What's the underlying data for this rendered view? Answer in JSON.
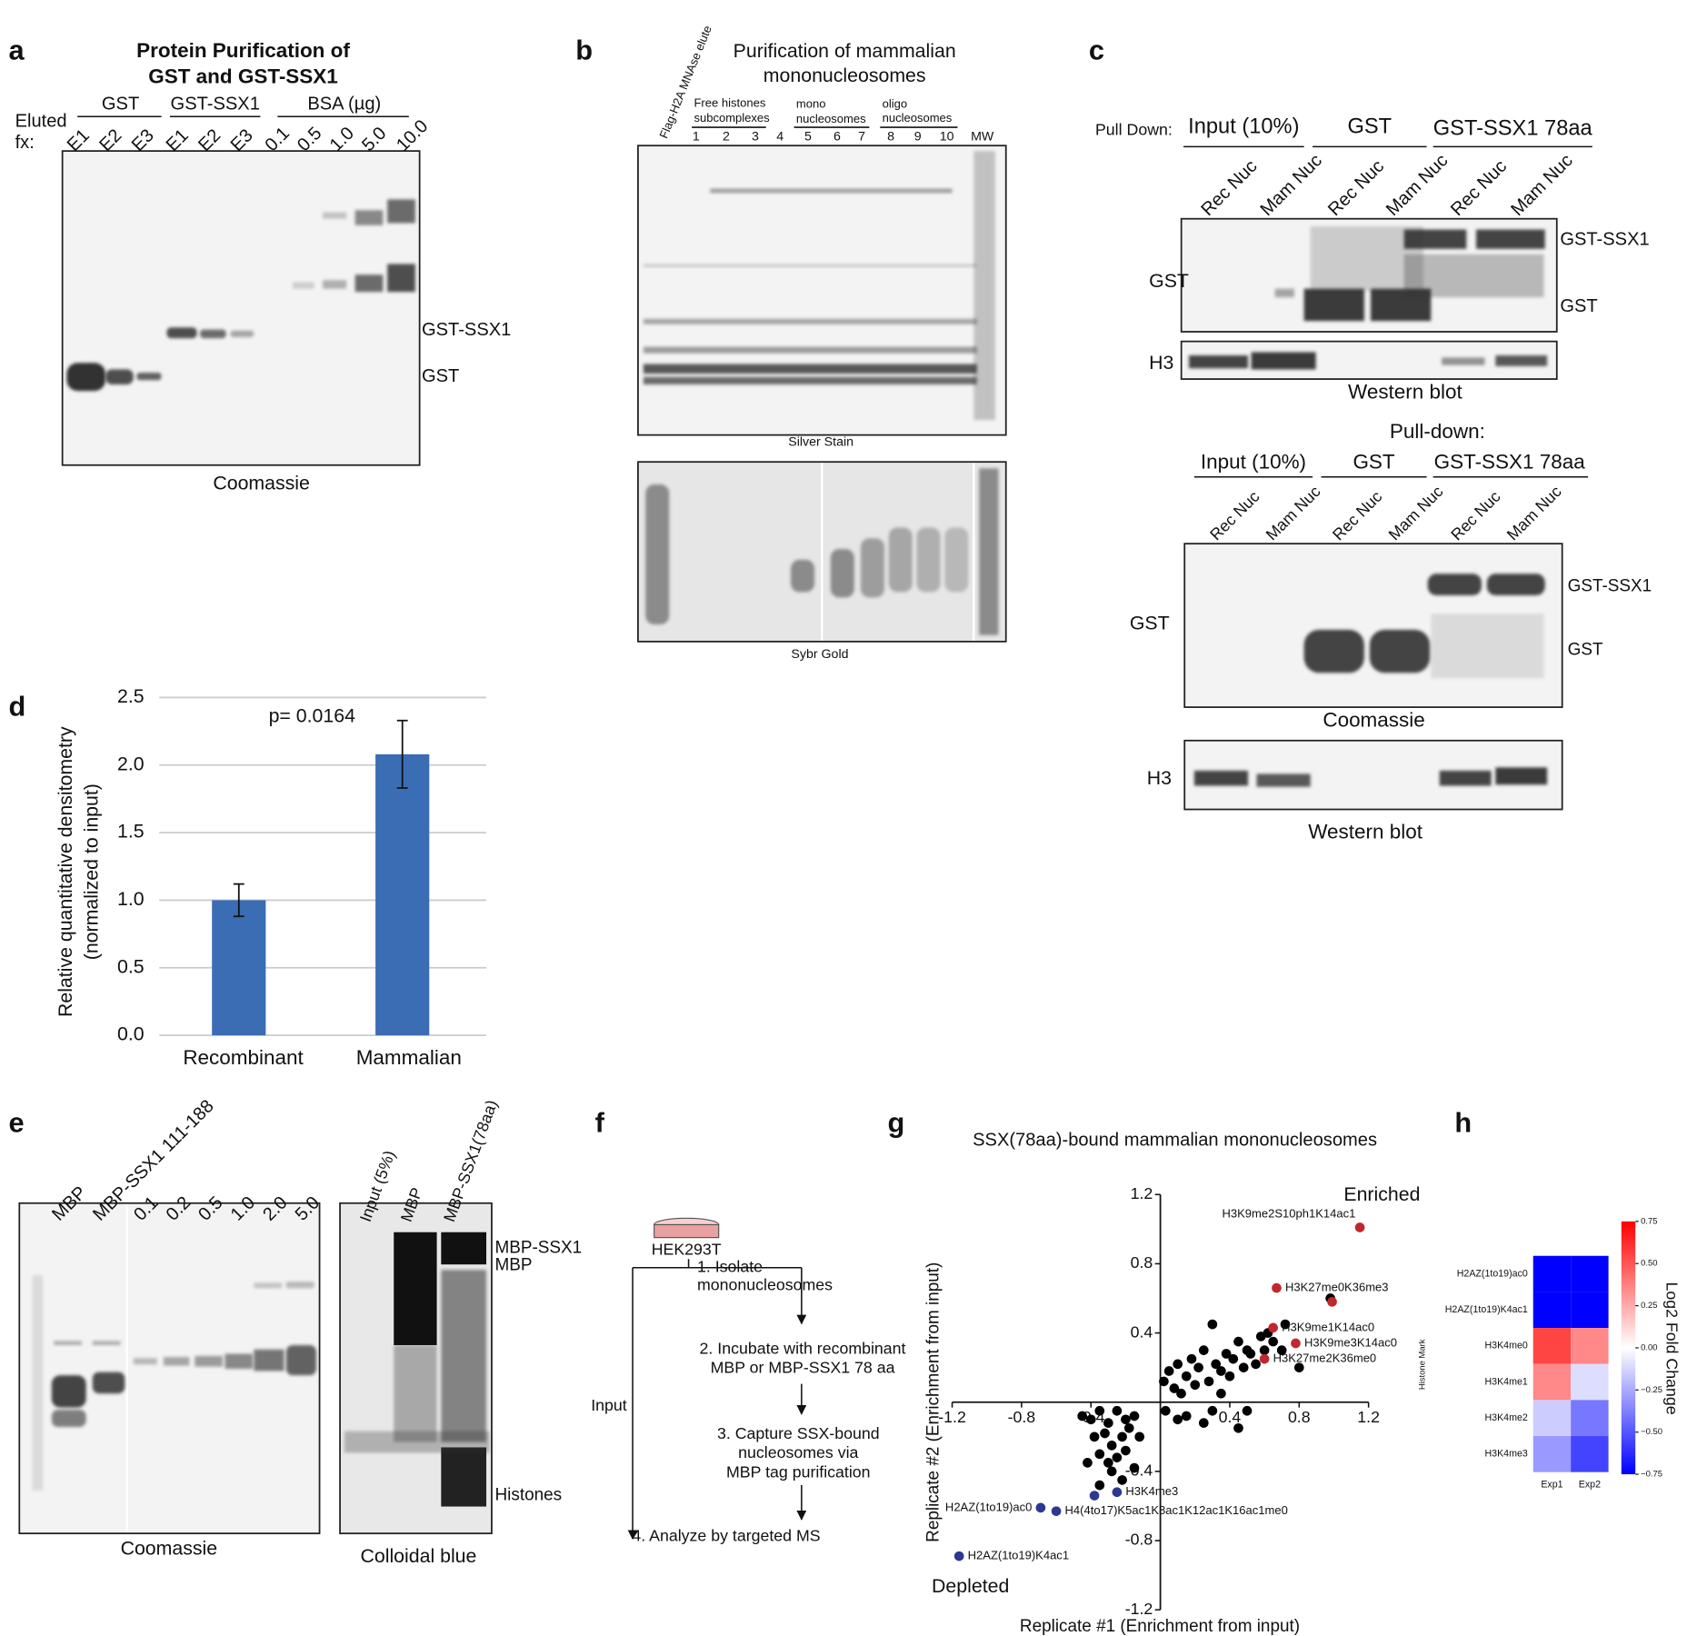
{
  "panels": {
    "a": {
      "letter": "a",
      "title": [
        "Protein Purification of",
        "GST and GST-SSX1"
      ],
      "eluted": [
        "Eluted",
        "fx:"
      ],
      "groups": [
        "GST",
        "GST-SSX1",
        "BSA (µg)"
      ],
      "lanes": [
        "E1",
        "E2",
        "E3",
        "E1",
        "E2",
        "E3",
        "0.1",
        "0.5",
        "1.0",
        "5.0",
        "10.0"
      ],
      "band_labels": [
        "GST-SSX1",
        "GST"
      ],
      "caption": "Coomassie"
    },
    "b": {
      "letter": "b",
      "title": [
        "Purification of mammalian",
        "mononucleosomes"
      ],
      "first_lane": "Flag-H2A MNAse elute",
      "groups": [
        [
          "Free histones",
          "subcomplexes"
        ],
        [
          "mono",
          "nucleosomes"
        ],
        [
          "oligo",
          "nucleosomes"
        ]
      ],
      "lanes": [
        "1",
        "2",
        "3",
        "4",
        "5",
        "6",
        "7",
        "8",
        "9",
        "10",
        "MW"
      ],
      "captions": [
        "Silver Stain",
        "Sybr Gold"
      ]
    },
    "c": {
      "letter": "c",
      "pull_down": "Pull Down:",
      "groups": [
        "Input (10%)",
        "GST",
        "GST-SSX1 78aa"
      ],
      "lanes": [
        "Rec Nuc",
        "Mam Nuc",
        "Rec Nuc",
        "Mam Nuc",
        "Rec Nuc",
        "Mam Nuc"
      ],
      "blots": [
        "GST",
        "H3"
      ],
      "band_labels": [
        "GST-SSX1",
        "GST"
      ],
      "caption": "Western blot",
      "lower": {
        "pull_down": "Pull-down:",
        "groups": [
          "Input (10%)",
          "GST",
          "GST-SSX1 78aa"
        ],
        "lanes": [
          "Rec Nuc",
          "Mam Nuc",
          "Rec Nuc",
          "Mam Nuc",
          "Rec Nuc",
          "Mam Nuc"
        ],
        "blots": [
          "GST",
          "H3"
        ],
        "band_labels": [
          "GST-SSX1",
          "GST"
        ],
        "captions": [
          "Coomassie",
          "Western blot"
        ]
      }
    },
    "d": {
      "letter": "d"
    },
    "e": {
      "letter": "e",
      "lanes": [
        "MBP",
        "MBP-SSX1 111-188",
        "0.1",
        "0.2",
        "0.5",
        "1.0",
        "2.0",
        "5.0"
      ],
      "caption": "Coomassie",
      "lanes2": [
        "Input (5%)",
        "MBP",
        "MBP-SSX1(78aa)"
      ],
      "band_labels": [
        "MBP-SSX1",
        "MBP",
        "Histones"
      ],
      "caption2": "Colloidal blue"
    },
    "f": {
      "letter": "f",
      "cells": "HEK293T",
      "steps": [
        [
          "1. Isolate",
          "mononucleosomes"
        ],
        [
          "2. Incubate with recombinant",
          "MBP or MBP-SSX1 78 aa"
        ],
        [
          "3. Capture SSX-bound",
          "nucleosomes via",
          "MBP tag purification"
        ],
        [
          "4. Analyze by targeted MS"
        ]
      ],
      "input": "Input"
    },
    "g": {
      "letter": "g"
    },
    "h": {
      "letter": "h"
    }
  },
  "chart_data": [
    {
      "type": "bar",
      "categories": [
        "Recombinant",
        "Mammalian"
      ],
      "values": [
        1.0,
        2.08
      ],
      "errors": [
        0.12,
        0.25
      ],
      "color": "#3b6db5",
      "ylim": [
        0,
        2.5
      ],
      "yticks": [
        {
          "value": 0,
          "label": "0.0"
        },
        0.5,
        {
          "value": 1,
          "label": "1.0"
        },
        1.5,
        {
          "value": 2,
          "label": "2.0"
        },
        2.5
      ],
      "y_label": [
        "Relative quantitative densitometry",
        "(normalized to input)"
      ],
      "annotation": "p= 0.0164",
      "grid": true
    },
    {
      "type": "scatter",
      "title": "SSX(78aa)-bound mammalian mononucleosomes",
      "x_label": "Replicate #1 (Enrichment from input)",
      "y_label": "Replicate #2 (Enrichment from input)",
      "xlim": [
        -1.2,
        1.2
      ],
      "ylim": [
        -1.2,
        1.2
      ],
      "xticks": [
        -1.2,
        -0.8,
        -0.4,
        0.4,
        0.8,
        1.2
      ],
      "yticks": [
        -1.2,
        -0.8,
        -0.4,
        0.4,
        0.8,
        1.2
      ],
      "series": [
        {
          "color": "#000000",
          "x": [
            0.02,
            0.05,
            0.08,
            0.1,
            0.12,
            0.15,
            0.18,
            0.2,
            0.22,
            0.25,
            0.28,
            0.3,
            0.32,
            0.35,
            0.38,
            0.4,
            0.42,
            0.45,
            0.48,
            0.5,
            0.52,
            0.55,
            0.58,
            0.6,
            0.62,
            0.65,
            0.7,
            0.72,
            0.8,
            0.98,
            0.03,
            0.15,
            0.25,
            0.3,
            0.45,
            0.5,
            0.1,
            0.35,
            -0.45,
            -0.4,
            -0.35,
            -0.3,
            -0.25,
            -0.2,
            -0.15,
            -0.38,
            -0.32,
            -0.28,
            -0.22,
            -0.18,
            -0.12,
            -0.35,
            -0.3,
            -0.25,
            -0.2,
            -0.42,
            -0.28,
            -0.22,
            -0.35,
            -0.15
          ],
          "y": [
            0.12,
            0.18,
            0.08,
            0.22,
            0.05,
            0.15,
            0.25,
            0.1,
            0.2,
            0.3,
            0.12,
            0.45,
            0.22,
            0.18,
            0.28,
            0.15,
            0.25,
            0.35,
            0.2,
            0.3,
            0.28,
            0.22,
            0.38,
            0.3,
            0.4,
            0.35,
            0.3,
            0.45,
            0.2,
            0.6,
            -0.05,
            -0.08,
            -0.12,
            -0.05,
            -0.15,
            -0.05,
            -0.1,
            0.05,
            -0.08,
            -0.1,
            -0.05,
            -0.12,
            -0.05,
            -0.1,
            -0.08,
            -0.2,
            -0.18,
            -0.25,
            -0.2,
            -0.15,
            -0.2,
            -0.3,
            -0.35,
            -0.32,
            -0.28,
            -0.35,
            -0.4,
            -0.45,
            -0.48,
            -0.38
          ]
        },
        {
          "name": "Enriched",
          "color": "#c1272d",
          "x": [
            1.15,
            0.67,
            0.99,
            0.65,
            0.78,
            0.6
          ],
          "y": [
            1.01,
            0.66,
            0.58,
            0.43,
            0.34,
            0.25
          ],
          "labels": [
            "H3K9me2S10ph1K14ac1",
            "H3K27me0K36me3",
            null,
            "H3K9me1K14ac0",
            "H3K9me3K14ac0",
            "H3K27me2K36me0"
          ]
        },
        {
          "name": "Depleted",
          "color": "#2b3990",
          "x": [
            -0.25,
            -0.38,
            -0.69,
            -0.6,
            -1.16
          ],
          "y": [
            -0.52,
            -0.54,
            -0.61,
            -0.63,
            -0.89
          ],
          "labels": [
            "H3K4me3",
            null,
            "H2AZ(1to19)ac0",
            "H4(4to17)K5ac1K8ac1K12ac1K16ac1me0",
            "H2AZ(1to19)K4ac1"
          ]
        }
      ]
    },
    {
      "type": "heatmap",
      "rows": [
        "H2AZ(1to19)ac0",
        "H2AZ(1to19)K4ac1",
        "H3K4me0",
        "H3K4me1",
        "H3K4me2",
        "H3K4me3"
      ],
      "columns": [
        "Exp1",
        "Exp2"
      ],
      "values": [
        [
          -0.75,
          -0.75
        ],
        [
          -0.75,
          -0.75
        ],
        [
          0.55,
          0.35
        ],
        [
          0.35,
          -0.1
        ],
        [
          -0.15,
          -0.4
        ],
        [
          -0.3,
          -0.55
        ]
      ],
      "clim": [
        -0.75,
        0.75
      ],
      "cticks": [
        {
          "value": -0.75,
          "label": "−0.75"
        },
        {
          "value": -0.5,
          "label": "−0.50"
        },
        {
          "value": -0.25,
          "label": "−0.25"
        },
        {
          "value": 0,
          "label": "0.00"
        },
        0.25,
        {
          "value": 0.5,
          "label": "0.50"
        },
        0.75
      ],
      "colorbar_label": "Log2 Fold Change",
      "y_label": "Histone Mark"
    }
  ]
}
